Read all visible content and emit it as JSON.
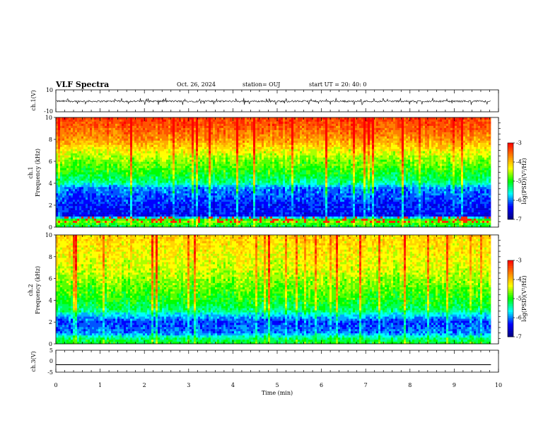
{
  "header": {
    "title": "VLF Spectra",
    "date": "Oct. 26, 2024",
    "station": "station= OUJ",
    "start": "start  UT  =   20: 40: 0"
  },
  "chart_data": [
    {
      "type": "line",
      "name": "ch1-waveform",
      "ylabel": "ch.1(V)",
      "ylim": [
        -10,
        10
      ],
      "yticks": [
        "10",
        "-10"
      ],
      "x_unit": "min",
      "xlim": [
        0,
        10
      ],
      "data_extent_min": 9.83,
      "baseline_v": -0.4,
      "envelope_v": [
        -2.2,
        1.4
      ]
    },
    {
      "type": "heatmap",
      "name": "ch1-spectrogram",
      "ylabel_1": "ch.1",
      "ylabel_2": "Frequency  (kHz)",
      "ylim": [
        0,
        10
      ],
      "yticks": [
        "0",
        "2",
        "4",
        "6",
        "8",
        "10"
      ],
      "xlim": [
        0,
        10
      ],
      "data_extent_min": 9.83,
      "colorbar": {
        "label": "log(PSD)(V²/Hz)",
        "min": -7,
        "max": -3,
        "ticks": [
          "-3",
          "-4",
          "-5",
          "-6",
          "-7"
        ]
      },
      "profile_khz_to_logpsd": [
        [
          0,
          -5.2
        ],
        [
          0.6,
          -4.6
        ],
        [
          1,
          -6.4
        ],
        [
          2,
          -6.3
        ],
        [
          3,
          -6.1
        ],
        [
          3.6,
          -6.0
        ],
        [
          4,
          -5.4
        ],
        [
          5,
          -5.0
        ],
        [
          6,
          -4.7
        ],
        [
          7,
          -4.3
        ],
        [
          8,
          -3.8
        ],
        [
          9,
          -3.5
        ],
        [
          10,
          -3.3
        ]
      ]
    },
    {
      "type": "heatmap",
      "name": "ch2-spectrogram",
      "ylabel_1": "ch.2",
      "ylabel_2": "Frequency  (kHz)",
      "ylim": [
        0,
        10
      ],
      "yticks": [
        "0",
        "2",
        "4",
        "6",
        "8",
        "10"
      ],
      "xlim": [
        0,
        10
      ],
      "data_extent_min": 9.83,
      "colorbar": {
        "label": "log(PSD)(V²/Hz)",
        "min": -7,
        "max": -3,
        "ticks": [
          "-3",
          "-4",
          "-5",
          "-6",
          "-7"
        ]
      },
      "profile_khz_to_logpsd": [
        [
          0,
          -5.0
        ],
        [
          0.5,
          -5.3
        ],
        [
          1,
          -6.0
        ],
        [
          2,
          -6.2
        ],
        [
          2.8,
          -5.6
        ],
        [
          3,
          -5.3
        ],
        [
          4,
          -5.0
        ],
        [
          5,
          -4.8
        ],
        [
          6,
          -4.6
        ],
        [
          7,
          -4.4
        ],
        [
          8,
          -4.3
        ],
        [
          9,
          -4.2
        ],
        [
          10,
          -4.1
        ]
      ]
    },
    {
      "type": "line",
      "name": "ch3-waveform",
      "ylabel": "ch.3(V)",
      "ylim": [
        -5,
        5
      ],
      "yticks": [
        "5",
        "0",
        "-5"
      ],
      "xlim": [
        0,
        10
      ],
      "data_extent_min": 9.83,
      "values_v": [
        -1.6,
        -1.6
      ]
    }
  ],
  "x_axis": {
    "label": "Time  (min)",
    "ticks": [
      "0",
      "1",
      "2",
      "3",
      "4",
      "5",
      "6",
      "7",
      "8",
      "9",
      "10"
    ]
  },
  "colormap": [
    "#000080",
    "#0000ff",
    "#00ffff",
    "#00ff00",
    "#ffff00",
    "#ff8000",
    "#ff0000"
  ]
}
